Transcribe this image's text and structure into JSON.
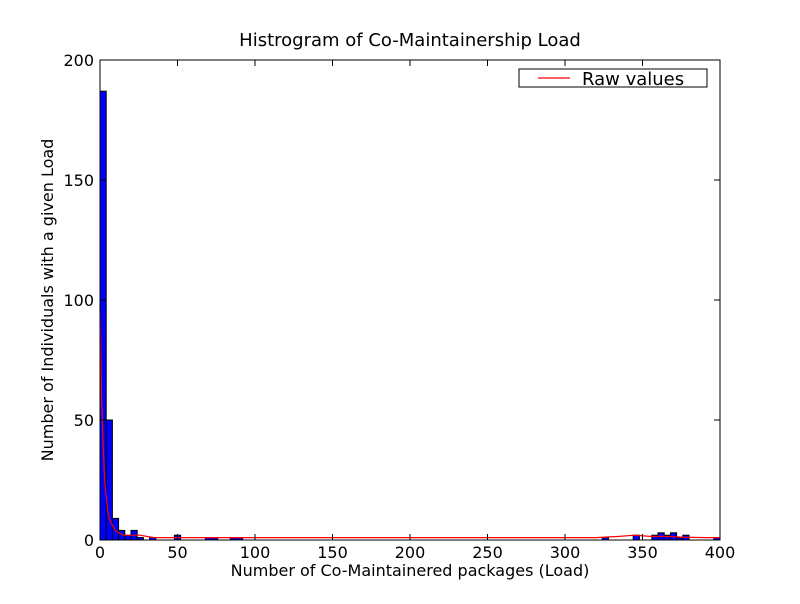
{
  "chart_data": {
    "type": "bar",
    "title": "Histrogram of Co-Maintainership Load",
    "xlabel": "Number of Co-Maintainered packages (Load)",
    "ylabel": "Number of Individuals with a given Load",
    "xlim": [
      0,
      400
    ],
    "ylim": [
      0,
      200
    ],
    "xticks": [
      "0",
      "50",
      "100",
      "150",
      "200",
      "250",
      "300",
      "350",
      "400"
    ],
    "yticks": [
      "0",
      "50",
      "100",
      "150",
      "200"
    ],
    "grid": false,
    "legend_position": "top-right",
    "bar_color": "#0000ff",
    "series_color": "#ff0000",
    "bins": [
      {
        "x0": 0,
        "x1": 4,
        "count": 187
      },
      {
        "x0": 4,
        "x1": 8,
        "count": 50
      },
      {
        "x0": 8,
        "x1": 12,
        "count": 9
      },
      {
        "x0": 12,
        "x1": 16,
        "count": 4
      },
      {
        "x0": 16,
        "x1": 20,
        "count": 2
      },
      {
        "x0": 20,
        "x1": 24,
        "count": 4
      },
      {
        "x0": 24,
        "x1": 28,
        "count": 1
      },
      {
        "x0": 32,
        "x1": 36,
        "count": 1
      },
      {
        "x0": 48,
        "x1": 52,
        "count": 2
      },
      {
        "x0": 68,
        "x1": 72,
        "count": 1
      },
      {
        "x0": 72,
        "x1": 76,
        "count": 1
      },
      {
        "x0": 84,
        "x1": 88,
        "count": 1
      },
      {
        "x0": 88,
        "x1": 92,
        "count": 1
      },
      {
        "x0": 324,
        "x1": 328,
        "count": 1
      },
      {
        "x0": 344,
        "x1": 348,
        "count": 2
      },
      {
        "x0": 356,
        "x1": 360,
        "count": 2
      },
      {
        "x0": 360,
        "x1": 364,
        "count": 3
      },
      {
        "x0": 364,
        "x1": 368,
        "count": 2
      },
      {
        "x0": 368,
        "x1": 372,
        "count": 3
      },
      {
        "x0": 372,
        "x1": 376,
        "count": 1
      },
      {
        "x0": 376,
        "x1": 380,
        "count": 2
      },
      {
        "x0": 396,
        "x1": 400,
        "count": 1
      }
    ],
    "series": [
      {
        "name": "Raw values",
        "x": [
          0,
          1,
          2,
          3,
          4,
          5,
          6,
          8,
          10,
          12,
          15,
          18,
          22,
          26,
          30,
          35,
          40,
          50,
          80,
          150,
          250,
          320,
          335,
          345,
          355,
          365,
          375,
          390,
          400
        ],
        "y": [
          97,
          60,
          40,
          25,
          18,
          12,
          9,
          6,
          4,
          3,
          2,
          2,
          2,
          2,
          1.5,
          1,
          1,
          1,
          1,
          1,
          1,
          1,
          1.5,
          2,
          1.5,
          1.5,
          1.2,
          1,
          1
        ]
      }
    ]
  }
}
